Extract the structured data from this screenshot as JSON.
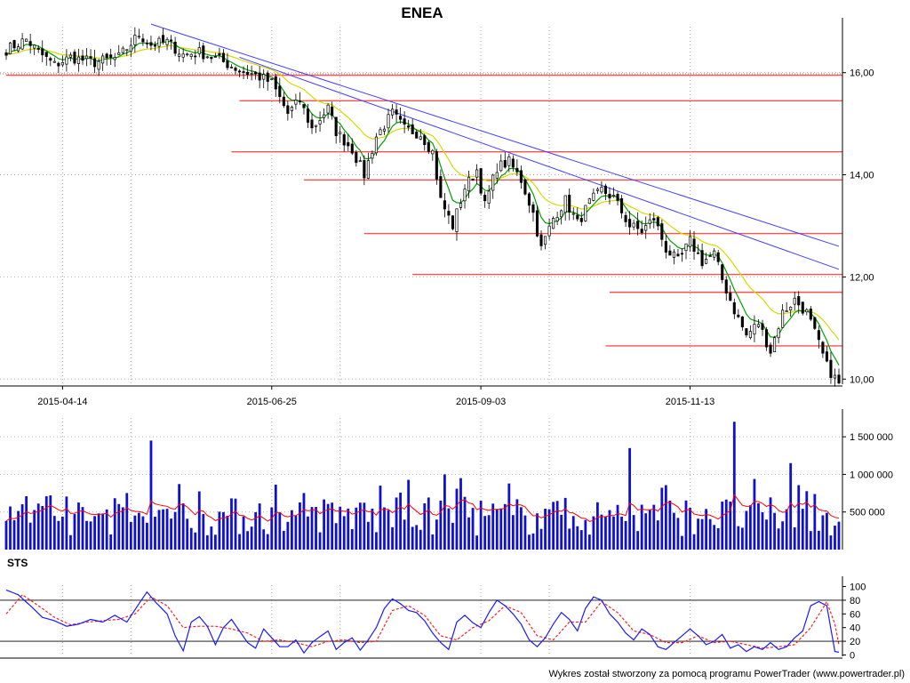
{
  "title": "ENEA",
  "footer": "Wykres został stworzony za pomocą programu PowerTrader (www.powertrader.pl)",
  "colors": {
    "candle": "#000000",
    "ema_short": "#00a000",
    "ema_long": "#d8d800",
    "support": "#ff5050",
    "trend": "#4040ff",
    "volume": "#1010d0",
    "volume_avg": "#ff0000",
    "sts_k": "#1a1aff",
    "sts_d": "#ff2020",
    "grid": "#b0b0b0"
  },
  "chart_data": [
    {
      "type": "candlestick",
      "name": "price",
      "title": "ENEA",
      "x_tick_labels": [
        "2015-04-14",
        "2015-06-25",
        "2015-09-03",
        "2015-11-13"
      ],
      "x_tick_index": [
        14,
        66,
        118,
        170
      ],
      "y_ticks": [
        10,
        12,
        14,
        16
      ],
      "y_tick_labels": [
        "10,00",
        "12,00",
        "14,00",
        "16,00"
      ],
      "ylim": [
        9.9,
        16.9
      ],
      "n_bars": 208,
      "close_anchors": [
        [
          0,
          16.45
        ],
        [
          5,
          16.65
        ],
        [
          8,
          16.4
        ],
        [
          12,
          16.15
        ],
        [
          16,
          16.3
        ],
        [
          22,
          16.2
        ],
        [
          28,
          16.3
        ],
        [
          33,
          16.75
        ],
        [
          36,
          16.55
        ],
        [
          40,
          16.6
        ],
        [
          44,
          16.35
        ],
        [
          48,
          16.4
        ],
        [
          53,
          16.25
        ],
        [
          58,
          16.05
        ],
        [
          62,
          15.95
        ],
        [
          66,
          15.8
        ],
        [
          70,
          15.2
        ],
        [
          73,
          15.45
        ],
        [
          76,
          14.9
        ],
        [
          80,
          15.3
        ],
        [
          82,
          14.85
        ],
        [
          86,
          14.5
        ],
        [
          89,
          14.0
        ],
        [
          92,
          14.75
        ],
        [
          96,
          15.2
        ],
        [
          99,
          14.9
        ],
        [
          103,
          14.8
        ],
        [
          106,
          14.45
        ],
        [
          108,
          13.5
        ],
        [
          111,
          13.0
        ],
        [
          114,
          13.75
        ],
        [
          117,
          14.1
        ],
        [
          119,
          13.4
        ],
        [
          122,
          14.15
        ],
        [
          125,
          14.25
        ],
        [
          128,
          13.9
        ],
        [
          131,
          13.25
        ],
        [
          133,
          12.55
        ],
        [
          136,
          13.15
        ],
        [
          139,
          13.5
        ],
        [
          142,
          13.05
        ],
        [
          145,
          13.45
        ],
        [
          148,
          13.7
        ],
        [
          151,
          13.55
        ],
        [
          155,
          13.0
        ],
        [
          158,
          12.9
        ],
        [
          161,
          13.15
        ],
        [
          164,
          12.55
        ],
        [
          167,
          12.3
        ],
        [
          170,
          12.7
        ],
        [
          173,
          12.3
        ],
        [
          176,
          12.45
        ],
        [
          178,
          11.95
        ],
        [
          181,
          11.35
        ],
        [
          184,
          10.85
        ],
        [
          187,
          11.1
        ],
        [
          190,
          10.55
        ],
        [
          193,
          11.3
        ],
        [
          196,
          11.55
        ],
        [
          199,
          11.3
        ],
        [
          201,
          10.9
        ],
        [
          204,
          10.25
        ],
        [
          207,
          9.9
        ]
      ],
      "volume_title": "",
      "volume_y_ticks": [
        500000,
        1000000,
        1500000
      ],
      "volume_y_tick_labels": [
        "500 000",
        "1 000 000",
        "1 500 000"
      ],
      "volume_ylim": [
        0,
        1750000
      ],
      "volume_spikes": [
        [
          36,
          1450000
        ],
        [
          109,
          1000000
        ],
        [
          113,
          950000
        ],
        [
          155,
          1350000
        ],
        [
          181,
          1700000
        ],
        [
          195,
          1150000
        ]
      ],
      "support_levels": [
        {
          "y": 15.95,
          "from": 0
        },
        {
          "y": 15.45,
          "from": 58
        },
        {
          "y": 14.45,
          "from": 56
        },
        {
          "y": 13.9,
          "from": 74
        },
        {
          "y": 12.85,
          "from": 89
        },
        {
          "y": 12.05,
          "from": 101
        },
        {
          "y": 11.7,
          "from": 150
        },
        {
          "y": 10.65,
          "from": 149
        }
      ],
      "trend_lines": [
        {
          "from": [
            36,
            16.95
          ],
          "to": [
            207,
            12.6
          ]
        },
        {
          "from": [
            58,
            16.3
          ],
          "to": [
            207,
            12.15
          ]
        }
      ]
    },
    {
      "type": "line",
      "name": "oscillator",
      "title": "STS",
      "y_ticks": [
        0,
        20,
        40,
        60,
        80,
        100
      ],
      "y_tick_labels": [
        "0",
        "20",
        "40",
        "60",
        "80",
        "100"
      ],
      "ylim": [
        -2,
        102
      ],
      "reference_lines": [
        20,
        80
      ],
      "k_anchors": [
        [
          0,
          95
        ],
        [
          3,
          88
        ],
        [
          6,
          72
        ],
        [
          9,
          55
        ],
        [
          12,
          50
        ],
        [
          15,
          42
        ],
        [
          18,
          45
        ],
        [
          21,
          52
        ],
        [
          24,
          48
        ],
        [
          27,
          58
        ],
        [
          30,
          48
        ],
        [
          33,
          75
        ],
        [
          35,
          92
        ],
        [
          37,
          78
        ],
        [
          40,
          60
        ],
        [
          42,
          28
        ],
        [
          44,
          6
        ],
        [
          46,
          48
        ],
        [
          48,
          56
        ],
        [
          50,
          42
        ],
        [
          52,
          15
        ],
        [
          54,
          40
        ],
        [
          56,
          52
        ],
        [
          58,
          35
        ],
        [
          60,
          18
        ],
        [
          62,
          10
        ],
        [
          64,
          38
        ],
        [
          66,
          25
        ],
        [
          68,
          12
        ],
        [
          70,
          12
        ],
        [
          72,
          22
        ],
        [
          74,
          3
        ],
        [
          76,
          18
        ],
        [
          78,
          27
        ],
        [
          80,
          35
        ],
        [
          82,
          8
        ],
        [
          84,
          18
        ],
        [
          86,
          25
        ],
        [
          88,
          7
        ],
        [
          90,
          22
        ],
        [
          92,
          40
        ],
        [
          94,
          68
        ],
        [
          96,
          82
        ],
        [
          98,
          75
        ],
        [
          100,
          65
        ],
        [
          102,
          62
        ],
        [
          104,
          50
        ],
        [
          106,
          32
        ],
        [
          108,
          18
        ],
        [
          110,
          8
        ],
        [
          112,
          48
        ],
        [
          114,
          58
        ],
        [
          116,
          47
        ],
        [
          118,
          40
        ],
        [
          120,
          62
        ],
        [
          122,
          80
        ],
        [
          124,
          72
        ],
        [
          126,
          60
        ],
        [
          128,
          45
        ],
        [
          130,
          22
        ],
        [
          132,
          12
        ],
        [
          134,
          25
        ],
        [
          136,
          45
        ],
        [
          138,
          62
        ],
        [
          140,
          52
        ],
        [
          142,
          35
        ],
        [
          144,
          68
        ],
        [
          146,
          85
        ],
        [
          148,
          80
        ],
        [
          150,
          60
        ],
        [
          152,
          48
        ],
        [
          154,
          32
        ],
        [
          156,
          22
        ],
        [
          158,
          38
        ],
        [
          160,
          30
        ],
        [
          162,
          12
        ],
        [
          164,
          8
        ],
        [
          166,
          18
        ],
        [
          168,
          28
        ],
        [
          170,
          38
        ],
        [
          172,
          28
        ],
        [
          174,
          15
        ],
        [
          176,
          20
        ],
        [
          178,
          30
        ],
        [
          180,
          10
        ],
        [
          182,
          15
        ],
        [
          184,
          5
        ],
        [
          186,
          12
        ],
        [
          188,
          8
        ],
        [
          190,
          18
        ],
        [
          192,
          8
        ],
        [
          194,
          12
        ],
        [
          196,
          25
        ],
        [
          198,
          35
        ],
        [
          200,
          72
        ],
        [
          202,
          78
        ],
        [
          204,
          72
        ],
        [
          206,
          5
        ],
        [
          207,
          4
        ]
      ],
      "d_anchors": [
        [
          0,
          60
        ],
        [
          4,
          88
        ],
        [
          8,
          72
        ],
        [
          12,
          55
        ],
        [
          16,
          44
        ],
        [
          20,
          48
        ],
        [
          24,
          50
        ],
        [
          28,
          52
        ],
        [
          32,
          60
        ],
        [
          36,
          85
        ],
        [
          40,
          72
        ],
        [
          44,
          40
        ],
        [
          48,
          42
        ],
        [
          52,
          42
        ],
        [
          56,
          38
        ],
        [
          60,
          32
        ],
        [
          64,
          20
        ],
        [
          68,
          22
        ],
        [
          72,
          18
        ],
        [
          76,
          12
        ],
        [
          80,
          20
        ],
        [
          84,
          22
        ],
        [
          88,
          18
        ],
        [
          92,
          20
        ],
        [
          96,
          65
        ],
        [
          100,
          72
        ],
        [
          104,
          58
        ],
        [
          108,
          28
        ],
        [
          112,
          22
        ],
        [
          116,
          40
        ],
        [
          120,
          50
        ],
        [
          124,
          72
        ],
        [
          128,
          62
        ],
        [
          132,
          28
        ],
        [
          136,
          22
        ],
        [
          140,
          48
        ],
        [
          144,
          48
        ],
        [
          148,
          78
        ],
        [
          152,
          62
        ],
        [
          156,
          35
        ],
        [
          160,
          30
        ],
        [
          164,
          18
        ],
        [
          168,
          18
        ],
        [
          172,
          28
        ],
        [
          176,
          18
        ],
        [
          180,
          20
        ],
        [
          184,
          15
        ],
        [
          188,
          10
        ],
        [
          192,
          12
        ],
        [
          196,
          15
        ],
        [
          200,
          40
        ],
        [
          204,
          78
        ],
        [
          206,
          45
        ],
        [
          207,
          15
        ]
      ]
    }
  ]
}
